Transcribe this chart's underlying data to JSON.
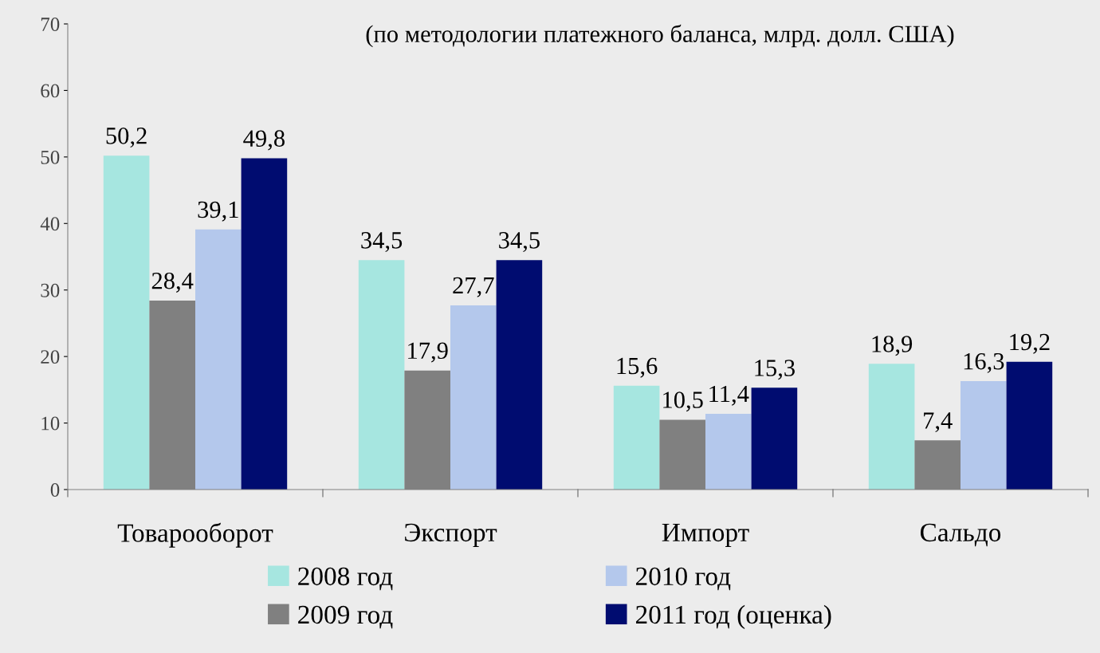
{
  "chart_data": {
    "type": "bar",
    "subtitle": "(по методологии платежного баланса, млрд. долл. США)",
    "categories": [
      "Товарооборот",
      "Экспорт",
      "Импорт",
      "Сальдо"
    ],
    "series": [
      {
        "name": "2008 год",
        "color": "#a6e6e0",
        "values": [
          50.2,
          34.5,
          15.6,
          18.9
        ],
        "value_labels": [
          "50,2",
          "34,5",
          "15,6",
          "18,9"
        ]
      },
      {
        "name": "2009 год",
        "color": "#808080",
        "values": [
          28.4,
          17.9,
          10.5,
          7.4
        ],
        "value_labels": [
          "28,4",
          "17,9",
          "10,5",
          "7,4"
        ]
      },
      {
        "name": "2010 год",
        "color": "#b4c8ec",
        "values": [
          39.1,
          27.7,
          11.4,
          16.3
        ],
        "value_labels": [
          "39,1",
          "27,7",
          "11,4",
          "16,3"
        ]
      },
      {
        "name": "2011 год (оценка)",
        "color": "#000c70",
        "values": [
          49.8,
          34.5,
          15.3,
          19.2
        ],
        "value_labels": [
          "49,8",
          "34,5",
          "15,3",
          "19,2"
        ]
      }
    ],
    "ylim": [
      0,
      70
    ],
    "yticks": [
      0,
      10,
      20,
      30,
      40,
      50,
      60,
      70
    ],
    "grid": false,
    "legend": "bottom"
  }
}
